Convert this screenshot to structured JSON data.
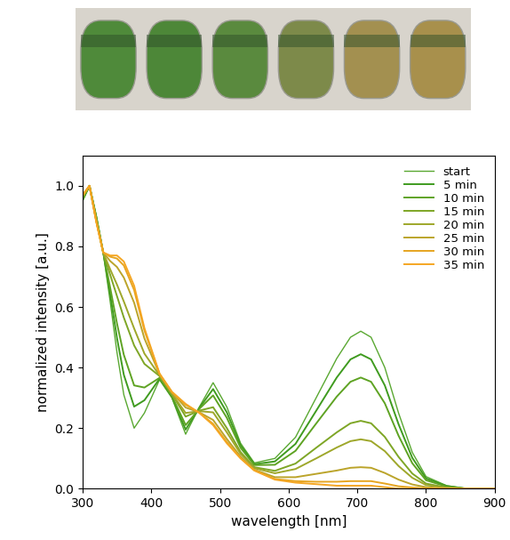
{
  "chart_data": {
    "type": "line",
    "x_label": "wavelength [nm]",
    "y_label": "normalized intensity [a.u.]",
    "x": [
      300,
      310,
      320,
      330,
      340,
      350,
      360,
      375,
      390,
      412,
      430,
      450,
      470,
      490,
      510,
      530,
      550,
      580,
      610,
      640,
      670,
      690,
      705,
      720,
      740,
      760,
      780,
      800,
      830,
      860,
      900
    ],
    "xlim": [
      300,
      900
    ],
    "xticks": [
      300,
      400,
      500,
      600,
      700,
      800,
      900
    ],
    "ylim": [
      0,
      1.1
    ],
    "yticks": [
      {
        "value": 0,
        "label": "0.0"
      },
      {
        "value": 0.2,
        "label": "0.2"
      },
      {
        "value": 0.4,
        "label": "0.4"
      },
      {
        "value": 0.6,
        "label": "0.6"
      },
      {
        "value": 0.8,
        "label": "0.8"
      },
      {
        "value": 1,
        "label": "1.0"
      }
    ],
    "legend": "upper right",
    "grid": false,
    "series": [
      {
        "name": "start",
        "color": "#5aa832",
        "values": [
          0.95,
          1.0,
          0.9,
          0.78,
          0.62,
          0.45,
          0.31,
          0.2,
          0.25,
          0.36,
          0.3,
          0.18,
          0.27,
          0.35,
          0.27,
          0.15,
          0.085,
          0.1,
          0.17,
          0.3,
          0.43,
          0.5,
          0.52,
          0.5,
          0.4,
          0.25,
          0.12,
          0.04,
          0.01,
          0.0,
          0.0
        ]
      },
      {
        "name": "5 min",
        "color": "#3f9b1f",
        "values": [
          0.953,
          1.0,
          0.897,
          0.78,
          0.643,
          0.498,
          0.376,
          0.271,
          0.292,
          0.363,
          0.303,
          0.195,
          0.267,
          0.329,
          0.252,
          0.143,
          0.081,
          0.09,
          0.148,
          0.257,
          0.367,
          0.427,
          0.444,
          0.427,
          0.341,
          0.213,
          0.102,
          0.034,
          0.009,
          0.0,
          0.0
        ]
      },
      {
        "name": "10 min",
        "color": "#5ea323",
        "values": [
          0.956,
          1.0,
          0.894,
          0.78,
          0.665,
          0.546,
          0.442,
          0.341,
          0.334,
          0.366,
          0.306,
          0.21,
          0.264,
          0.308,
          0.234,
          0.135,
          0.078,
          0.079,
          0.125,
          0.215,
          0.304,
          0.353,
          0.367,
          0.353,
          0.282,
          0.175,
          0.084,
          0.028,
          0.007,
          0.0,
          0.0
        ]
      },
      {
        "name": "15 min",
        "color": "#7ea626",
        "values": [
          0.962,
          1.0,
          0.888,
          0.78,
          0.707,
          0.636,
          0.565,
          0.473,
          0.412,
          0.372,
          0.312,
          0.238,
          0.258,
          0.269,
          0.2,
          0.121,
          0.071,
          0.059,
          0.083,
          0.135,
          0.186,
          0.216,
          0.224,
          0.216,
          0.171,
          0.105,
          0.05,
          0.017,
          0.004,
          0.0,
          0.0
        ]
      },
      {
        "name": "20 min",
        "color": "#9ea72a",
        "values": [
          0.964,
          1.0,
          0.886,
          0.78,
          0.725,
          0.674,
          0.618,
          0.529,
          0.446,
          0.374,
          0.314,
          0.25,
          0.256,
          0.252,
          0.186,
          0.115,
          0.068,
          0.051,
          0.065,
          0.1,
          0.136,
          0.157,
          0.163,
          0.157,
          0.124,
          0.075,
          0.036,
          0.012,
          0.003,
          0.0,
          0.0
        ]
      },
      {
        "name": "25 min",
        "color": "#bba42a",
        "values": [
          0.968,
          1.0,
          0.882,
          0.78,
          0.752,
          0.732,
          0.697,
          0.614,
          0.496,
          0.378,
          0.318,
          0.268,
          0.252,
          0.227,
          0.164,
          0.106,
          0.063,
          0.038,
          0.038,
          0.049,
          0.06,
          0.069,
          0.071,
          0.069,
          0.052,
          0.03,
          0.014,
          0.005,
          0.001,
          0.0,
          0.0
        ]
      },
      {
        "name": "30 min",
        "color": "#e6a520",
        "values": [
          0.969,
          1.0,
          0.881,
          0.78,
          0.766,
          0.76,
          0.737,
          0.656,
          0.522,
          0.379,
          0.319,
          0.277,
          0.251,
          0.214,
          0.154,
          0.101,
          0.061,
          0.032,
          0.025,
          0.023,
          0.023,
          0.025,
          0.025,
          0.025,
          0.017,
          0.008,
          0.004,
          0.001,
          0.0,
          0.0,
          0.0
        ]
      },
      {
        "name": "35 min",
        "color": "#f5a623",
        "values": [
          0.97,
          1.0,
          0.88,
          0.78,
          0.77,
          0.77,
          0.75,
          0.67,
          0.53,
          0.38,
          0.32,
          0.28,
          0.25,
          0.21,
          0.15,
          0.1,
          0.06,
          0.03,
          0.02,
          0.015,
          0.01,
          0.01,
          0.01,
          0.01,
          0.005,
          0.0,
          0.0,
          0.0,
          0.0,
          0.0,
          0.0
        ]
      }
    ]
  }
}
